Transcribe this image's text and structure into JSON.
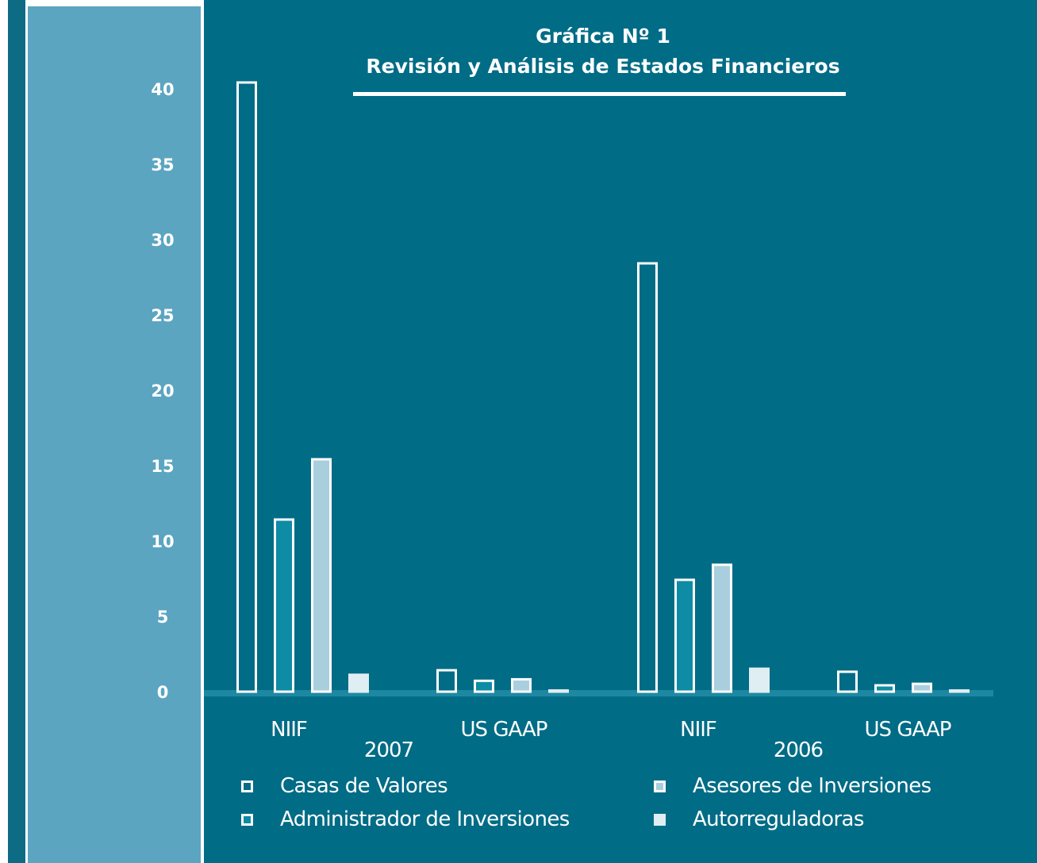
{
  "chart_data": {
    "type": "bar",
    "title": "Gráfica Nº 1",
    "subtitle": "Revisión y Análisis de Estados Financieros",
    "ylim": [
      0,
      40
    ],
    "yticks": [
      "0",
      "5",
      "10",
      "15",
      "20",
      "25",
      "30",
      "35",
      "40"
    ],
    "groups": [
      {
        "label": "2007",
        "categories": [
          "NIIF",
          "US GAAP"
        ]
      },
      {
        "label": "2006",
        "categories": [
          "NIIF",
          "US GAAP"
        ]
      }
    ],
    "categories": [
      "NIIF 2007",
      "US GAAP 2007",
      "NIIF 2006",
      "US GAAP 2006"
    ],
    "series": [
      {
        "name": "Casas de Valores",
        "color": "#006c86",
        "outline": "#ffffff",
        "values": [
          40.5,
          1.5,
          28.5,
          1.4
        ]
      },
      {
        "name": "Administrador de Inversiones",
        "color": "#0e8ba5",
        "outline": "#ffffff",
        "values": [
          11.5,
          0.8,
          7.5,
          0.5
        ]
      },
      {
        "name": "Asesores de Inversiones",
        "color": "#a9cfde",
        "outline": "#ffffff",
        "values": [
          15.5,
          0.9,
          8.5,
          0.6
        ]
      },
      {
        "name": "Autorreguladoras",
        "color": "#dfeef3",
        "outline": "#dfeef3",
        "values": [
          1.2,
          0.1,
          1.6,
          0.1
        ]
      }
    ],
    "legend": "bottom",
    "grid": false
  },
  "colors": {
    "plot_background": "#006c86",
    "axis_panel": "#5ba5c1",
    "baseline": "#1e88a3",
    "text": "#ffffff"
  }
}
